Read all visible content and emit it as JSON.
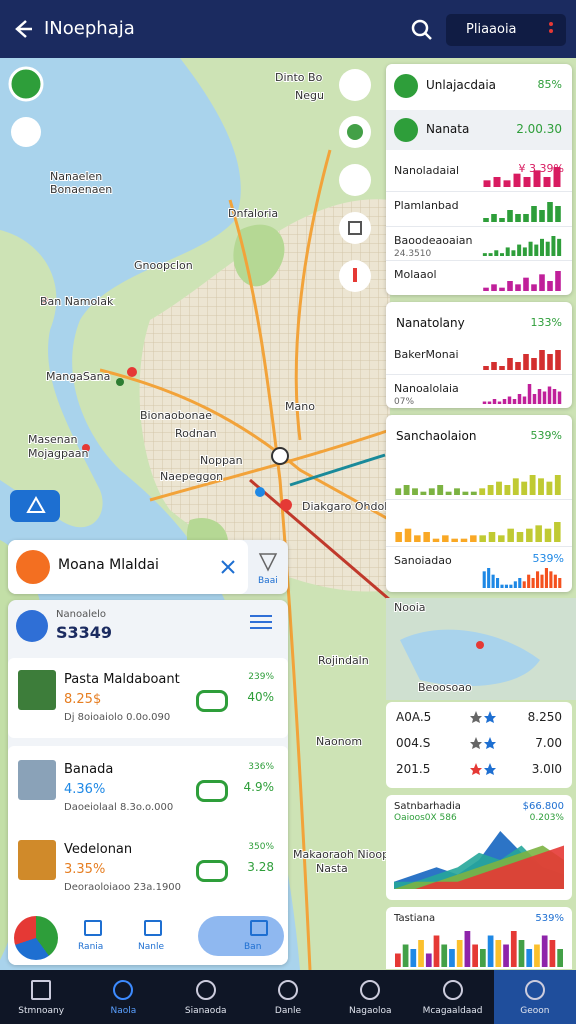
{
  "header": {
    "title": "INoephaja",
    "button": "Pliaaoia"
  },
  "map": {
    "labels": [
      "Dinto Bo",
      "Negu",
      "Nanaelen",
      "Bonaenaen",
      "Dnfaloria",
      "Gnoopclon",
      "Ban Namolak",
      "MangaSana",
      "Bionaobonae",
      "Noppan",
      "Masenan",
      "Mojagpaan",
      "Rodnan",
      "Naepeggon",
      "Mano",
      "Diakgaro Ohdola",
      "Rojindaln",
      "Naonom",
      "Makaoraoh Nioopaon",
      "Nasta",
      "Nooia",
      "Beoosoao"
    ]
  },
  "search": {
    "text": "Moana Mlaldai",
    "hint": "Baai"
  },
  "summary": {
    "label": "Nanoalelo",
    "value": "S3349"
  },
  "items": [
    {
      "name": "Pasta Maldaboant",
      "price": "8.25$",
      "change": "239%",
      "pct": "40%",
      "meta": "Dj 8oioaiolo 0.0o.090"
    },
    {
      "name": "Banada",
      "price": "4.36%",
      "change": "336%",
      "pct": "4.9%",
      "meta": "Daoeiolaal 8.3o.o.000"
    },
    {
      "name": "Vedelonan",
      "price": "3.35%",
      "change": "350%",
      "pct": "3.28",
      "meta": "Deoraoloiaoo 23a.1900"
    }
  ],
  "toolbar": [
    "Rania",
    "Nanle",
    "Ban"
  ],
  "stats": [
    {
      "title": "Unlajacdaia",
      "value": "85%",
      "sub": "Nanata",
      "subvalue": "2.00.30",
      "rows": [
        {
          "label": "Nanoladaial",
          "value": "¥ 3.39%",
          "colors": [
            "#d81b60"
          ],
          "bars": [
            2,
            3,
            2,
            4,
            3,
            5,
            3,
            6
          ]
        },
        {
          "label": "Plamlanbad",
          "colors": [
            "#2e9e3a"
          ],
          "bars": [
            1,
            2,
            1,
            3,
            2,
            2,
            4,
            3,
            5,
            4
          ]
        },
        {
          "label": "Baoodeaoaian",
          "note": "24.3510",
          "colors": [
            "#2e9e3a"
          ],
          "bars": [
            1,
            1,
            2,
            1,
            3,
            2,
            4,
            3,
            5,
            4,
            6,
            5,
            7,
            6
          ]
        },
        {
          "label": "Molaaol",
          "colors": [
            "#c0209a"
          ],
          "bars": [
            1,
            2,
            1,
            3,
            2,
            4,
            2,
            5,
            3,
            6
          ]
        }
      ]
    },
    {
      "title": "Nanatolany",
      "value": "133%",
      "rows": [
        {
          "label": "BakerMonai",
          "colors": [
            "#d32f2f"
          ],
          "bars": [
            1,
            2,
            1,
            3,
            2,
            4,
            3,
            5,
            4,
            5
          ]
        },
        {
          "label": "Nanoalolaia",
          "note": "07%",
          "colors": [
            "#c0209a"
          ],
          "bars": [
            1,
            1,
            2,
            1,
            2,
            3,
            2,
            4,
            3,
            8,
            4,
            6,
            5,
            7,
            6,
            5
          ]
        }
      ]
    },
    {
      "title": "Sanchaolaion",
      "value": "539%",
      "rows": [
        {
          "colors": [
            "#7cb342",
            "#c0ca33"
          ],
          "bars": [
            2,
            3,
            2,
            1,
            2,
            3,
            1,
            2,
            1,
            1,
            2,
            3,
            4,
            3,
            5,
            4,
            6,
            5,
            4,
            6
          ]
        },
        {
          "colors": [
            "#f9a825",
            "#c0ca33"
          ],
          "bars": [
            3,
            4,
            2,
            3,
            1,
            2,
            1,
            1,
            2,
            2,
            3,
            2,
            4,
            3,
            4,
            5,
            4,
            6
          ]
        },
        {
          "label": "Sanoiadao",
          "value": "539%",
          "colors": [
            "#1e88e5",
            "#f4511e"
          ],
          "bars": [
            5,
            6,
            4,
            3,
            1,
            1,
            1,
            2,
            3,
            2,
            4,
            3,
            5,
            4,
            6,
            5,
            4,
            3
          ]
        }
      ]
    }
  ],
  "table": [
    [
      "A0A.5",
      "8.250"
    ],
    [
      "004.S",
      "7.00"
    ],
    [
      "201.5",
      "3.0I0"
    ]
  ],
  "trend": {
    "title": "Satnbarhadia",
    "value": "$66.800",
    "sub": "Oaioos0X 586",
    "subvalue": "0.203%",
    "series": [
      {
        "color": "#1565c0",
        "values": [
          1,
          2,
          3,
          2,
          4,
          8,
          5,
          3,
          2
        ]
      },
      {
        "color": "#26a69a",
        "values": [
          1,
          1,
          2,
          3,
          5,
          4,
          6,
          3,
          2
        ]
      },
      {
        "color": "#7cb342",
        "values": [
          0,
          1,
          1,
          2,
          3,
          4,
          5,
          6,
          4
        ]
      },
      {
        "color": "#e53935",
        "values": [
          0,
          0,
          1,
          1,
          2,
          3,
          4,
          5,
          6
        ]
      }
    ]
  },
  "bars": {
    "title": "Tastiana",
    "value": "539%",
    "colors": [
      "#e53935",
      "#43a047",
      "#1e88e5",
      "#fbc02d",
      "#8e24aa"
    ],
    "bars": [
      3,
      5,
      4,
      6,
      3,
      7,
      5,
      4,
      6,
      8,
      5,
      4,
      7,
      6,
      5,
      8,
      6,
      4,
      5,
      7,
      6,
      4
    ]
  },
  "nav": [
    "Stmnoany",
    "Naola",
    "Sianaoda",
    "Danle",
    "Nagaoloa",
    "Mcagaaldaad",
    "Geoon"
  ]
}
